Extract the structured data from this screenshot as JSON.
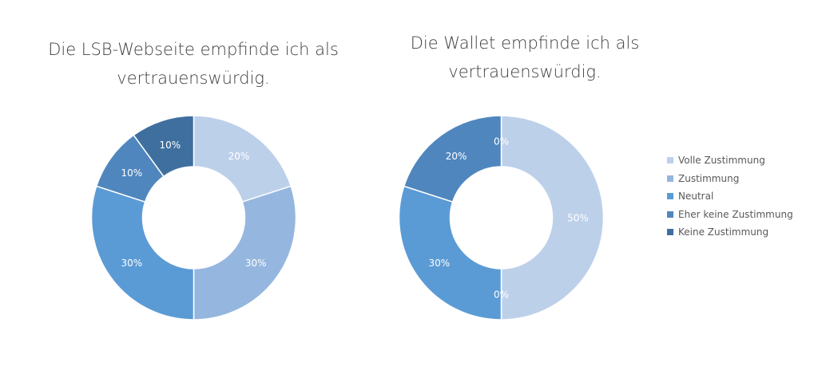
{
  "colors": [
    "#bdd0ea",
    "#95b6df",
    "#5b9bd5",
    "#4f86be",
    "#3f6f9f"
  ],
  "label_color": "#ffffff",
  "chart_data": [
    {
      "type": "pie",
      "donut": true,
      "title": [
        "Die LSB-Webseite empfinde ich als",
        "vertrauenswürdig."
      ],
      "categories": [
        "Volle Zustimmung",
        "Zustimmung",
        "Neutral",
        "Eher keine Zustimmung",
        "Keine Zustimmung"
      ],
      "values": [
        20,
        30,
        30,
        10,
        10
      ],
      "labels": [
        "20%",
        "30%",
        "30%",
        "10%",
        "10%"
      ]
    },
    {
      "type": "pie",
      "donut": true,
      "title": [
        "Die Wallet empfinde ich als",
        "vertrauenswürdig."
      ],
      "categories": [
        "Volle Zustimmung",
        "Zustimmung",
        "Neutral",
        "Eher keine Zustimmung",
        "Keine Zustimmung"
      ],
      "values": [
        50,
        0,
        30,
        20,
        0
      ],
      "labels": [
        "50%",
        "0%",
        "30%",
        "20%",
        "0%"
      ]
    }
  ],
  "legend": {
    "position": "right",
    "items": [
      "Volle Zustimmung",
      "Zustimmung",
      "Neutral",
      "Eher keine Zustimmung",
      "Keine Zustimmung"
    ]
  }
}
